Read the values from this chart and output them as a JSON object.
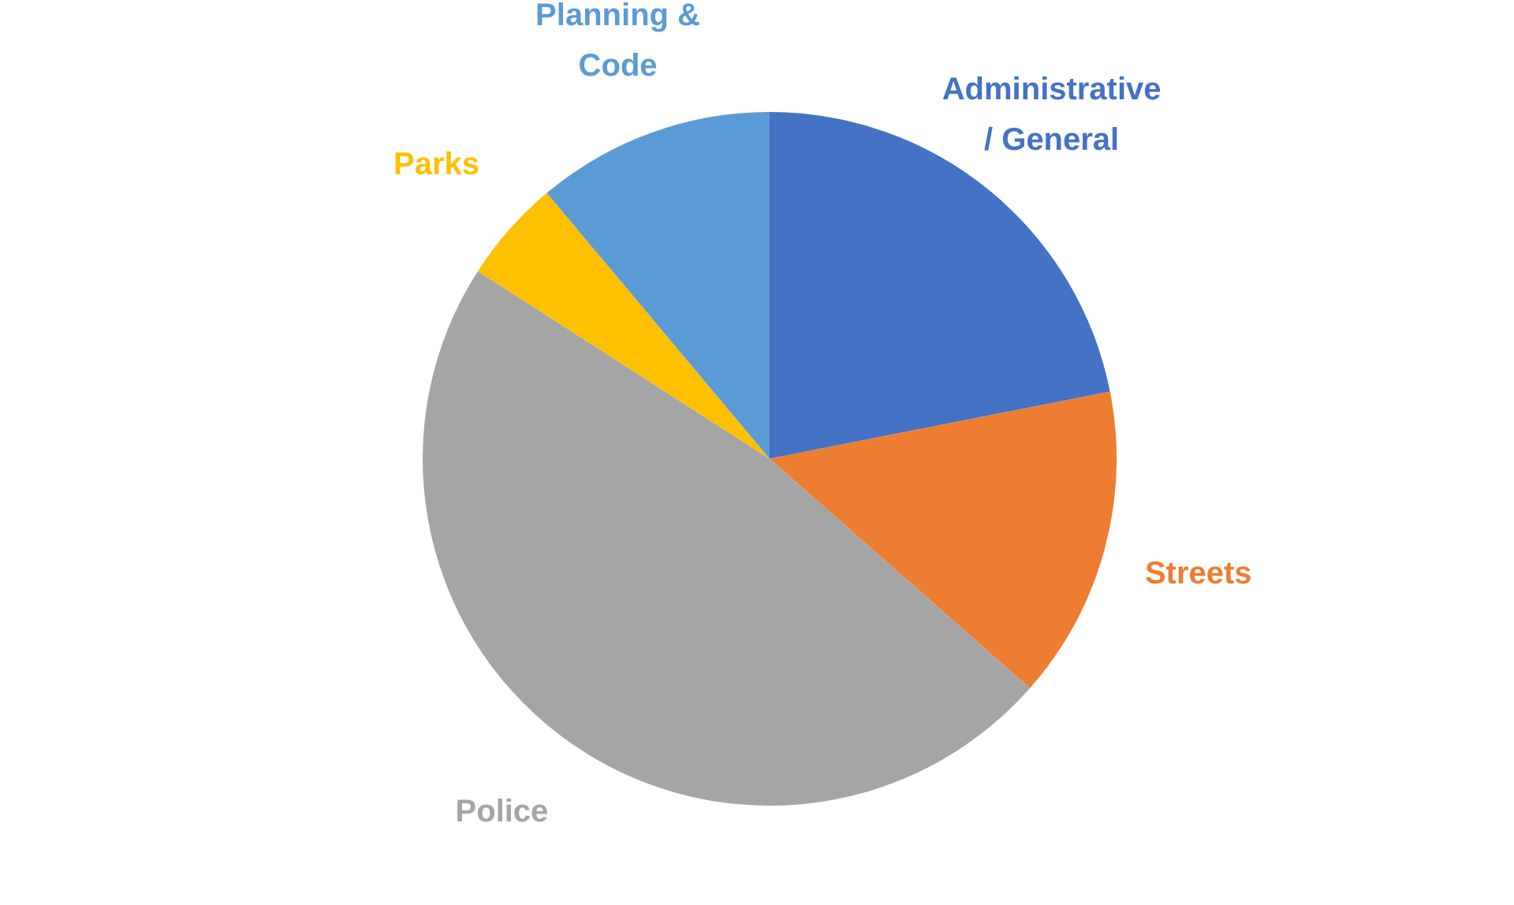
{
  "chart_data": {
    "type": "pie",
    "categories": [
      "Administrative / General",
      "Streets",
      "Police",
      "Parks",
      "Planning & Code"
    ],
    "values": [
      21.9,
      14.6,
      47.6,
      4.8,
      11.1
    ],
    "colors": [
      "#4472c4",
      "#ed7d31",
      "#a5a5a5",
      "#ffc000",
      "#5b9bd5"
    ],
    "legend": false
  }
}
